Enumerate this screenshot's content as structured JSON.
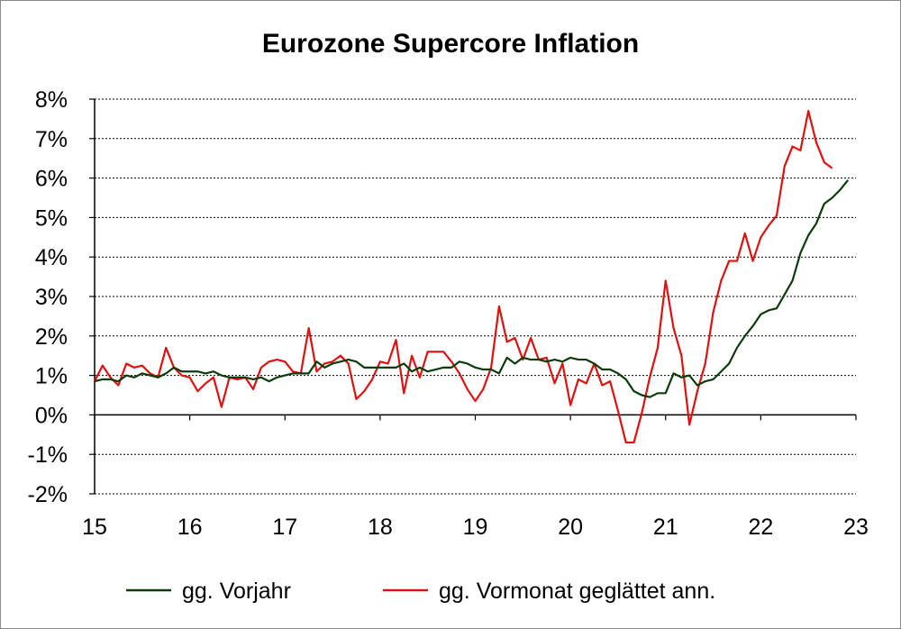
{
  "chart_data": {
    "type": "line",
    "title": "Eurozone Supercore Inflation",
    "xlabel": "",
    "ylabel": "",
    "xlim": [
      15,
      23
    ],
    "ylim": [
      -2,
      8
    ],
    "x_ticks": [
      "15",
      "16",
      "17",
      "18",
      "19",
      "20",
      "21",
      "22",
      "23"
    ],
    "y_ticks": [
      "-2%",
      "-1%",
      "0%",
      "1%",
      "2%",
      "3%",
      "4%",
      "5%",
      "6%",
      "7%",
      "8%"
    ],
    "grid": "horizontal dotted",
    "legend": "bottom",
    "series": [
      {
        "name": "gg. Vorjahr",
        "color": "#0a3d0a",
        "x_start": "2015-01",
        "frequency": "monthly",
        "values": [
          0.85,
          0.9,
          0.9,
          0.85,
          1.0,
          0.95,
          1.05,
          1.0,
          0.95,
          1.05,
          1.2,
          1.1,
          1.1,
          1.1,
          1.05,
          1.1,
          1.0,
          0.95,
          0.95,
          0.95,
          0.9,
          0.95,
          0.85,
          0.95,
          1.0,
          1.05,
          1.05,
          1.05,
          1.35,
          1.2,
          1.3,
          1.35,
          1.4,
          1.35,
          1.2,
          1.2,
          1.2,
          1.2,
          1.2,
          1.3,
          1.1,
          1.2,
          1.1,
          1.15,
          1.2,
          1.2,
          1.35,
          1.3,
          1.2,
          1.15,
          1.15,
          1.05,
          1.45,
          1.3,
          1.45,
          1.4,
          1.4,
          1.35,
          1.4,
          1.35,
          1.45,
          1.4,
          1.4,
          1.3,
          1.15,
          1.15,
          1.05,
          0.9,
          0.6,
          0.5,
          0.45,
          0.55,
          0.55,
          1.05,
          0.95,
          1.0,
          0.75,
          0.85,
          0.9,
          1.1,
          1.3,
          1.7,
          2.0,
          2.25,
          2.55,
          2.65,
          2.7,
          3.05,
          3.4,
          4.1,
          4.55,
          4.85,
          5.35,
          5.5,
          5.7,
          5.95
        ]
      },
      {
        "name": "gg. Vormonat geglättet ann.",
        "color": "#e01010",
        "x_start": "2015-01",
        "frequency": "monthly",
        "values": [
          0.85,
          1.25,
          0.95,
          0.75,
          1.3,
          1.2,
          1.25,
          1.05,
          0.95,
          1.7,
          1.2,
          1.0,
          0.95,
          0.6,
          0.8,
          0.95,
          0.2,
          0.95,
          0.9,
          0.95,
          0.65,
          1.2,
          1.35,
          1.4,
          1.35,
          1.1,
          1.05,
          2.2,
          1.1,
          1.3,
          1.35,
          1.5,
          1.3,
          0.4,
          0.6,
          0.9,
          1.35,
          1.3,
          1.9,
          0.55,
          1.5,
          0.95,
          1.6,
          1.6,
          1.6,
          1.35,
          1.05,
          0.65,
          0.35,
          0.65,
          1.2,
          2.75,
          1.85,
          1.95,
          1.4,
          1.95,
          1.4,
          1.45,
          0.8,
          1.3,
          0.25,
          0.9,
          0.8,
          1.3,
          0.75,
          0.85,
          0.1,
          -0.7,
          -0.7,
          0.05,
          0.95,
          1.7,
          3.4,
          2.2,
          1.5,
          -0.25,
          0.6,
          1.3,
          2.6,
          3.4,
          3.9,
          3.9,
          4.6,
          3.9,
          4.5,
          4.8,
          5.05,
          6.3,
          6.8,
          6.7,
          7.7,
          6.9,
          6.4,
          6.25
        ]
      }
    ]
  }
}
